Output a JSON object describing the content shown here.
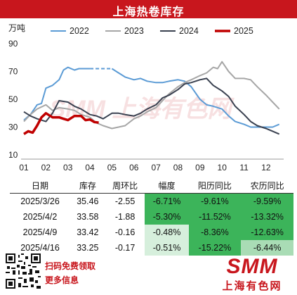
{
  "header": {
    "title": "上海热卷库存"
  },
  "chart_data": {
    "type": "line",
    "ylabel": "万吨",
    "ylim": [
      10,
      90
    ],
    "yticks": [
      10,
      30,
      50,
      70,
      90
    ],
    "x_categories": [
      "01",
      "02",
      "03",
      "04",
      "05",
      "06",
      "07",
      "08",
      "09",
      "10",
      "11",
      "12"
    ],
    "grid": false,
    "legend_position": "top",
    "series": [
      {
        "name": "2022",
        "color": "#5b9bd5",
        "x": [
          1.0,
          1.3,
          1.6,
          1.8,
          2.0,
          2.3,
          2.6,
          2.8,
          3.0,
          3.3,
          3.5,
          3.8,
          4.0,
          4.5,
          5.0,
          5.3,
          5.6,
          6.0,
          6.3,
          6.6,
          7.0,
          7.3,
          7.6,
          8.0,
          8.3,
          8.6,
          9.0,
          9.3,
          9.6,
          10.0,
          10.3,
          10.6,
          11.0,
          11.3,
          11.6,
          12.0,
          12.3,
          12.6
        ],
        "y": [
          35,
          39,
          46,
          47,
          58,
          60,
          64,
          71,
          73,
          71,
          72,
          72,
          72,
          72,
          72,
          69,
          66,
          64,
          65,
          63,
          62,
          62,
          63,
          64,
          63,
          59,
          50,
          46,
          45,
          43,
          38,
          34,
          32,
          30,
          30,
          30,
          30,
          32
        ],
        "dashed_x_range": [
          4.0,
          5.0
        ]
      },
      {
        "name": "2023",
        "color": "#a6a6a6",
        "x": [
          1.0,
          1.3,
          1.6,
          2.0,
          2.3,
          2.6,
          3.0,
          3.3,
          3.6,
          4.0,
          4.3,
          4.6,
          5.0,
          5.3,
          5.6,
          6.0,
          6.3,
          6.6,
          7.0,
          7.3,
          7.6,
          8.0,
          8.3,
          8.6,
          9.0,
          9.3,
          9.6,
          9.8,
          10.0,
          10.3,
          10.6,
          11.0,
          11.3,
          11.6,
          12.0,
          12.3,
          12.6
        ],
        "y": [
          34,
          39,
          43,
          46,
          42,
          44,
          43,
          42,
          39,
          37,
          33,
          31,
          29,
          30,
          31,
          36,
          38,
          41,
          44,
          49,
          54,
          59,
          62,
          64,
          67,
          69,
          73,
          72,
          77,
          70,
          65,
          65,
          64,
          59,
          53,
          48,
          43
        ]
      },
      {
        "name": "2024",
        "color": "#3a4150",
        "x": [
          1.0,
          1.3,
          1.6,
          2.0,
          2.3,
          2.6,
          3.0,
          3.3,
          3.6,
          4.0,
          4.3,
          4.6,
          5.0,
          5.3,
          5.6,
          6.0,
          6.3,
          6.6,
          7.0,
          7.3,
          7.6,
          8.0,
          8.3,
          8.6,
          9.0,
          9.3,
          9.6,
          10.0,
          10.3,
          10.6,
          11.0,
          11.3,
          11.6,
          12.0,
          12.3,
          12.6
        ],
        "y": [
          41,
          38,
          36,
          34,
          40,
          49,
          48,
          45,
          43,
          39,
          38,
          36,
          40,
          40,
          39,
          38,
          40,
          43,
          46,
          51,
          53,
          57,
          61,
          62,
          64,
          65,
          60,
          56,
          52,
          45,
          39,
          34,
          31,
          29,
          27,
          25
        ]
      },
      {
        "name": "2025",
        "color": "#c00000",
        "x": [
          1.0,
          1.2,
          1.4,
          1.6,
          1.8,
          2.0,
          2.3,
          2.6,
          2.8,
          3.0,
          3.3,
          3.6,
          3.8,
          4.0,
          4.2,
          4.4
        ],
        "y": [
          25,
          27,
          26,
          31,
          37,
          40,
          37,
          37,
          36,
          35,
          38,
          38,
          35,
          35.46,
          33.58,
          33.25
        ]
      }
    ],
    "watermark": "SMM 上海有色网"
  },
  "table": {
    "headers": [
      "日期",
      "库存",
      "周环比",
      "幅度",
      "阳历同比",
      "农历同比"
    ],
    "rows": [
      [
        "2025/3/26",
        "35.46",
        "-2.55",
        "-6.71%",
        "-9.61%",
        "-9.59%"
      ],
      [
        "2025/4/2",
        "33.58",
        "-1.88",
        "-5.30%",
        "-11.52%",
        "-13.32%"
      ],
      [
        "2025/4/9",
        "33.42",
        "-0.16",
        "-0.48%",
        "-8.36%",
        "-12.63%"
      ],
      [
        "2025/4/16",
        "33.25",
        "-0.17",
        "-0.51%",
        "-15.22%",
        "-6.44%"
      ]
    ]
  },
  "footer": {
    "scan_text": "扫码免费领取",
    "more_text": "更多信息",
    "logo_text": "SMM",
    "logo_cn": "上海有色网"
  }
}
